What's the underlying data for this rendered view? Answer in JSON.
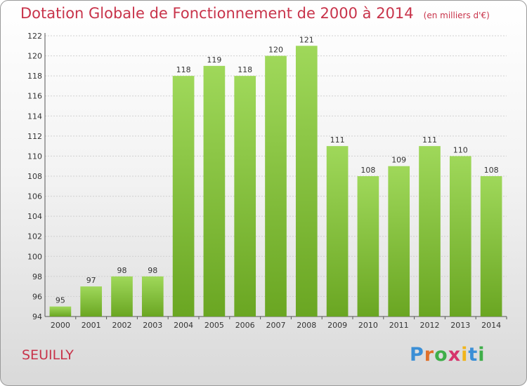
{
  "header": {
    "title": "Dotation Globale de Fonctionnement de 2000 à 2014",
    "unit": "(en milliers d'€)"
  },
  "footer": {
    "commune": "SEUILLY",
    "logo_letters": [
      "P",
      "r",
      "o",
      "x",
      "i",
      "t",
      "i"
    ],
    "logo_colors": [
      "#3b8fd6",
      "#e0702a",
      "#3fae49",
      "#d6336c",
      "#f1b51c",
      "#3b8fd6",
      "#3fae49"
    ]
  },
  "chart_data": {
    "type": "bar",
    "title": "Dotation Globale de Fonctionnement de 2000 à 2014",
    "subtitle": "(en milliers d'€)",
    "xlabel": "",
    "ylabel": "",
    "categories": [
      "2000",
      "2001",
      "2002",
      "2003",
      "2004",
      "2005",
      "2006",
      "2007",
      "2008",
      "2009",
      "2010",
      "2011",
      "2012",
      "2013",
      "2014"
    ],
    "values": [
      95,
      97,
      98,
      98,
      118,
      119,
      118,
      120,
      121,
      111,
      108,
      109,
      111,
      110,
      108
    ],
    "ylim": [
      94,
      122
    ],
    "yticks": [
      94,
      96,
      98,
      100,
      102,
      104,
      106,
      108,
      110,
      112,
      114,
      116,
      118,
      120,
      122
    ],
    "grid": true,
    "bar_color_top": "#9fd85a",
    "bar_color_bottom": "#6aa622"
  }
}
